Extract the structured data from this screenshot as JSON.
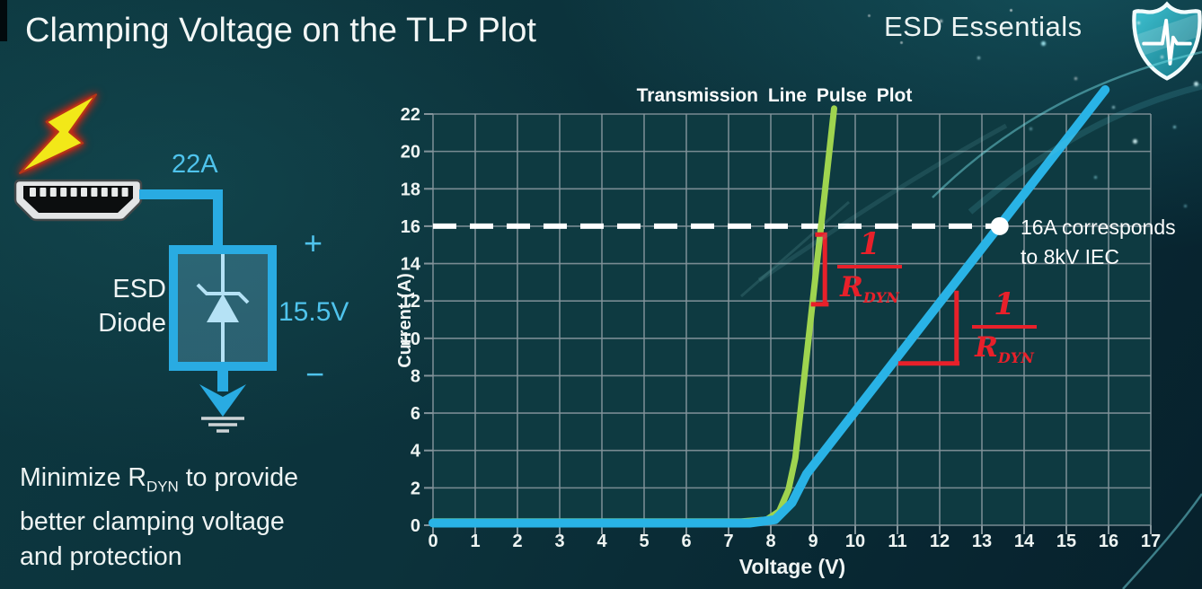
{
  "slide": {
    "title": "Clamping Voltage on the TLP Plot",
    "brand": "ESD Essentials",
    "note": {
      "line1_pre": "Minimize R",
      "line1_sub": "DYN",
      "line1_post": " to provide",
      "line2": "better clamping voltage",
      "line3": "and protection"
    }
  },
  "circuit": {
    "surge_current": "22A",
    "device_line1": "ESD",
    "device_line2": "Diode",
    "clamp_voltage": "15.5V",
    "polarity_plus": "+",
    "polarity_minus": "−",
    "colors": {
      "wire": "#29abe2",
      "label_cyan": "#4fc3ec",
      "bolt_yellow": "#f2e818"
    }
  },
  "chart_data": {
    "type": "line",
    "title": "Transmission Line Pulse Plot",
    "xlabel": "Voltage (V)",
    "ylabel": "Current (A)",
    "xlim": [
      0,
      17
    ],
    "ylim": [
      0,
      22
    ],
    "x_tick_step": 1,
    "y_tick_step": 2,
    "grid": true,
    "legend": "none",
    "colors": {
      "plot_bg": "#0e3a41",
      "grid": "#84949b",
      "tick_text": "#eef4f2"
    },
    "series": [
      {
        "name": "green",
        "color": "#9fd44f",
        "width": 7,
        "points": [
          [
            0,
            0.2
          ],
          [
            7.3,
            0.2
          ],
          [
            7.9,
            0.3
          ],
          [
            8.2,
            0.75
          ],
          [
            8.42,
            1.9
          ],
          [
            8.58,
            3.6
          ],
          [
            9.5,
            22.3
          ]
        ]
      },
      {
        "name": "blue",
        "color": "#29b3e6",
        "width": 10,
        "points": [
          [
            0,
            0.12
          ],
          [
            7.5,
            0.12
          ],
          [
            8.1,
            0.3
          ],
          [
            8.5,
            1.2
          ],
          [
            8.85,
            2.75
          ],
          [
            15.92,
            23.3
          ]
        ]
      }
    ],
    "threshold_line": {
      "y": 16,
      "x_start": 0,
      "x_end": 13.25,
      "color": "#ffffff",
      "style": "dashed"
    },
    "marker": {
      "x": 13.42,
      "y": 16,
      "color": "#ffffff",
      "label_line1": "16A corresponds",
      "label_line2": "to 8kV IEC"
    },
    "slope_annotations": [
      {
        "frac_numerator": "1",
        "frac_denominator": "R",
        "frac_denominator_sub": "DYN",
        "color": "#e8202a",
        "lines": [
          [
            [
              9.05,
              15.55
            ],
            [
              9.28,
              15.55
            ],
            [
              9.28,
              11.82
            ]
          ],
          [
            [
              8.95,
              11.82
            ],
            [
              9.37,
              11.82
            ]
          ]
        ]
      },
      {
        "frac_numerator": "1",
        "frac_denominator": "R",
        "frac_denominator_sub": "DYN",
        "color": "#e8202a",
        "lines": [
          [
            [
              12.4,
              12.55
            ],
            [
              12.4,
              8.66
            ]
          ],
          [
            [
              11.02,
              8.66
            ],
            [
              12.47,
              8.66
            ]
          ]
        ]
      }
    ]
  }
}
